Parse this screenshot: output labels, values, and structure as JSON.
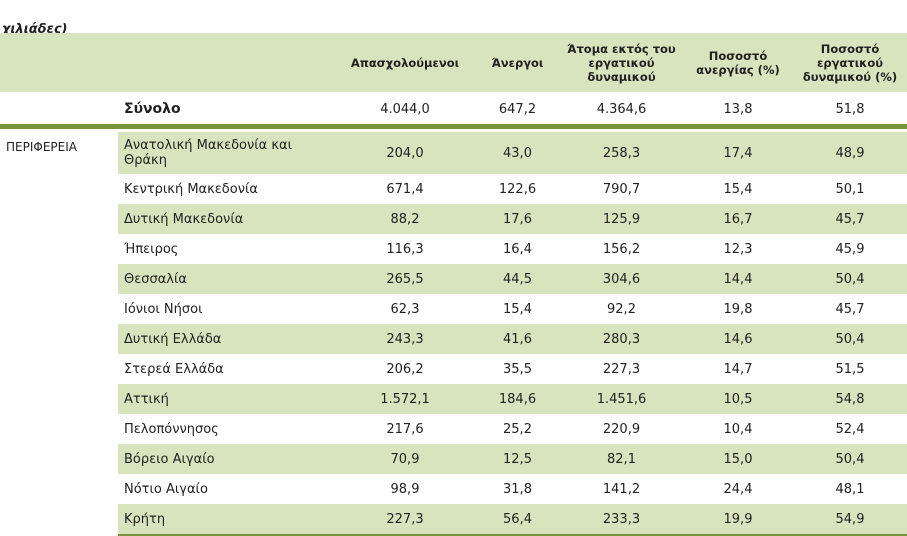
{
  "header": {
    "caption": "χιλιάδες)"
  },
  "table": {
    "headers": [
      "Απασχολούμενοι",
      "Άνεργοι",
      "Άτομα εκτός του εργατικού δυναμικού",
      "Ποσοστό ανεργίας (%)",
      "Ποσοστό εργατικού δυναμικού (%)"
    ],
    "total": {
      "label": "Σύνολο",
      "values": [
        "4.044,0",
        "647,2",
        "4.364,6",
        "13,8",
        "51,8"
      ]
    },
    "section_label": "ΠΕΡΙΦΕΡΕΙΑ",
    "rows": [
      [
        "Ανατολική Μακεδονία και Θράκη",
        "204,0",
        "43,0",
        "258,3",
        "17,4",
        "48,9"
      ],
      [
        "Κεντρική Μακεδονία",
        "671,4",
        "122,6",
        "790,7",
        "15,4",
        "50,1"
      ],
      [
        "Δυτική Μακεδονία",
        "88,2",
        "17,6",
        "125,9",
        "16,7",
        "45,7"
      ],
      [
        "Ήπειρος",
        "116,3",
        "16,4",
        "156,2",
        "12,3",
        "45,9"
      ],
      [
        "Θεσσαλία",
        "265,5",
        "44,5",
        "304,6",
        "14,4",
        "50,4"
      ],
      [
        "Ιόνιοι Νήσοι",
        "62,3",
        "15,4",
        "92,2",
        "19,8",
        "45,7"
      ],
      [
        "Δυτική Ελλάδα",
        "243,3",
        "41,6",
        "280,3",
        "14,6",
        "50,4"
      ],
      [
        "Στερεά Ελλάδα",
        "206,2",
        "35,5",
        "227,3",
        "14,7",
        "51,5"
      ],
      [
        "Αττική",
        "1.572,1",
        "184,6",
        "1.451,6",
        "10,5",
        "54,8"
      ],
      [
        "Πελοπόννησος",
        "217,6",
        "25,2",
        "220,9",
        "10,4",
        "52,4"
      ],
      [
        "Βόρειο Αιγαίο",
        "70,9",
        "12,5",
        "82,1",
        "15,0",
        "50,4"
      ],
      [
        "Νότιο Αιγαίο",
        "98,9",
        "31,8",
        "141,2",
        "24,4",
        "48,1"
      ],
      [
        "Κρήτη",
        "227,3",
        "56,4",
        "233,3",
        "19,9",
        "54,9"
      ]
    ]
  }
}
